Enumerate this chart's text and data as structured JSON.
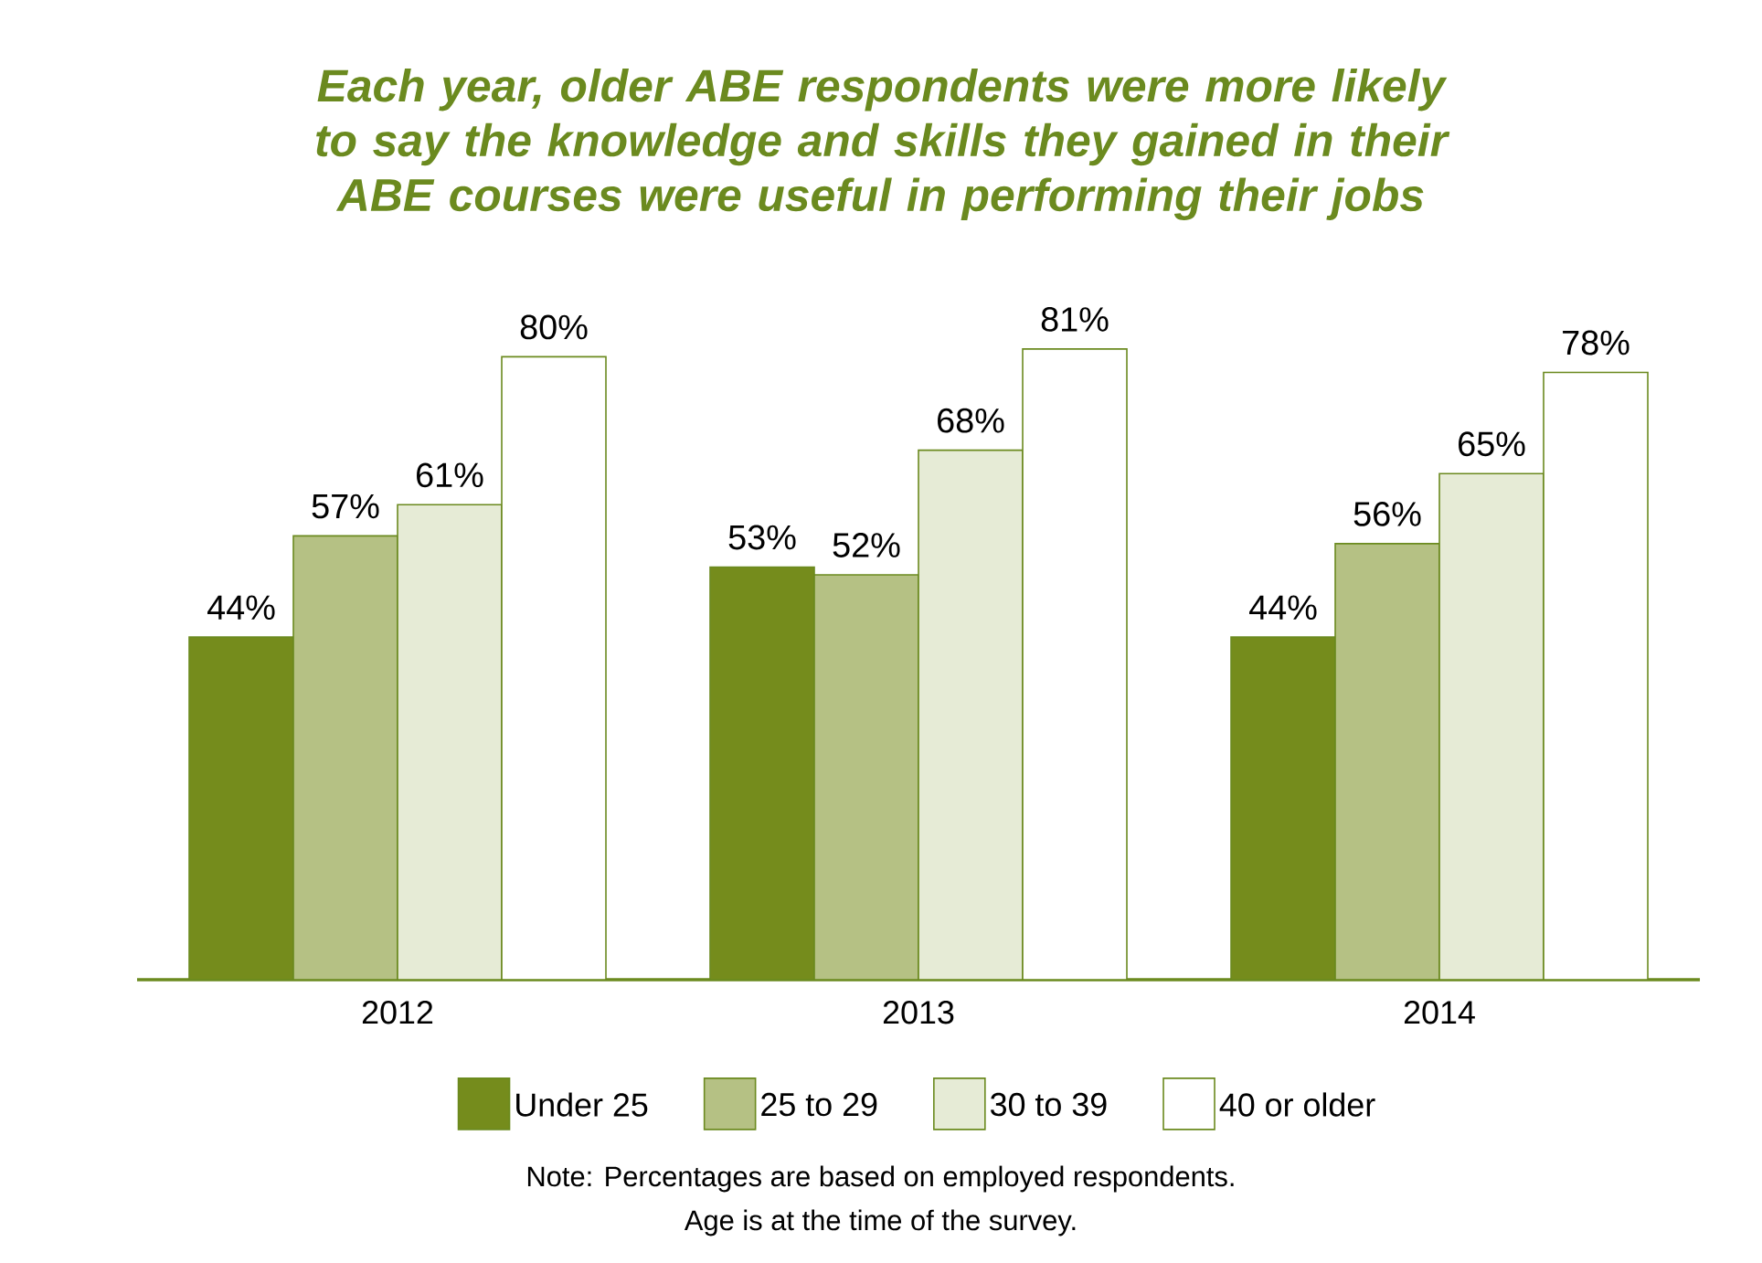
{
  "chart_data": {
    "type": "bar",
    "title": "Each year, older ABE respondents were more likely to say the knowledge and skills they gained in their ABE courses were useful in performing their jobs",
    "categories": [
      "2012",
      "2013",
      "2014"
    ],
    "series": [
      {
        "name": "Under 25",
        "color": "#758c1c",
        "values": [
          44,
          53,
          44
        ],
        "value_labels": [
          "44%",
          "53%",
          "44%"
        ]
      },
      {
        "name": "25 to 29",
        "color": "#b5c184",
        "values": [
          57,
          52,
          56
        ],
        "value_labels": [
          "57%",
          "52%",
          "56%"
        ]
      },
      {
        "name": "30 to 39",
        "color": "#e6ebd6",
        "values": [
          61,
          68,
          65
        ],
        "value_labels": [
          "61%",
          "68%",
          "65%"
        ]
      },
      {
        "name": "40 or older",
        "color": "#ffffff",
        "values": [
          80,
          81,
          78
        ],
        "value_labels": [
          "80%",
          "81%",
          "78%"
        ]
      }
    ],
    "legend": "bottom",
    "annotations": [
      "Note: Percentages are based on employed respondents.",
      "Age is at the time of the survey."
    ]
  }
}
